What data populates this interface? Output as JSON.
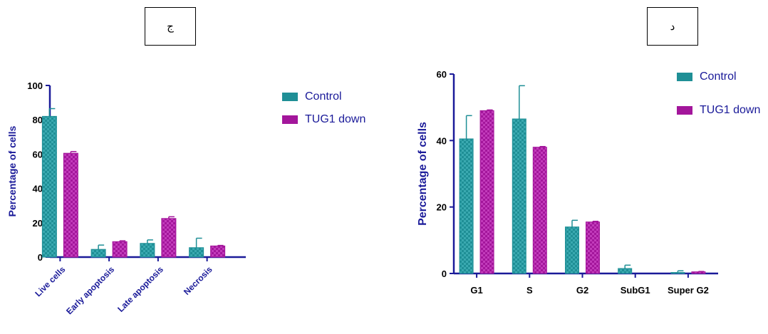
{
  "colors": {
    "control": "#1f8f96",
    "tug1": "#a3169b",
    "axis": "#1a1a99"
  },
  "panels": {
    "left_tag": "ج",
    "right_tag": "د"
  },
  "chart_data": [
    {
      "type": "bar",
      "categories": [
        "Live cells",
        "Early apoptosis",
        "Late apoptosis",
        "Necrosis"
      ],
      "series": [
        {
          "name": "Control",
          "values": [
            82,
            4.5,
            8,
            5.5
          ],
          "errors": [
            4.5,
            2.5,
            2,
            5.5
          ]
        },
        {
          "name": "TUG1 down",
          "values": [
            60.5,
            9,
            22.5,
            6.5
          ],
          "errors": [
            1,
            0.5,
            1,
            0.3
          ]
        }
      ],
      "xlabel": "",
      "ylabel": "Percentage of cells",
      "ylim": [
        0,
        100
      ],
      "yticks": [
        0,
        20,
        40,
        60,
        80,
        100
      ],
      "legend": "top-right"
    },
    {
      "type": "bar",
      "categories": [
        "G1",
        "S",
        "G2",
        "SubG1",
        "Super G2"
      ],
      "series": [
        {
          "name": "Control",
          "values": [
            40.5,
            46.5,
            14,
            1.5,
            0.3
          ],
          "errors": [
            7,
            10,
            2,
            1,
            0.5
          ]
        },
        {
          "name": "TUG1 down",
          "values": [
            49,
            38,
            15.5,
            0,
            0.5
          ],
          "errors": [
            0.2,
            0.2,
            0.2,
            0,
            0.1
          ]
        }
      ],
      "xlabel": "",
      "ylabel": "Percentage of cells",
      "ylim": [
        0,
        60
      ],
      "yticks": [
        0,
        20,
        40,
        60
      ],
      "legend": "top-right"
    }
  ]
}
